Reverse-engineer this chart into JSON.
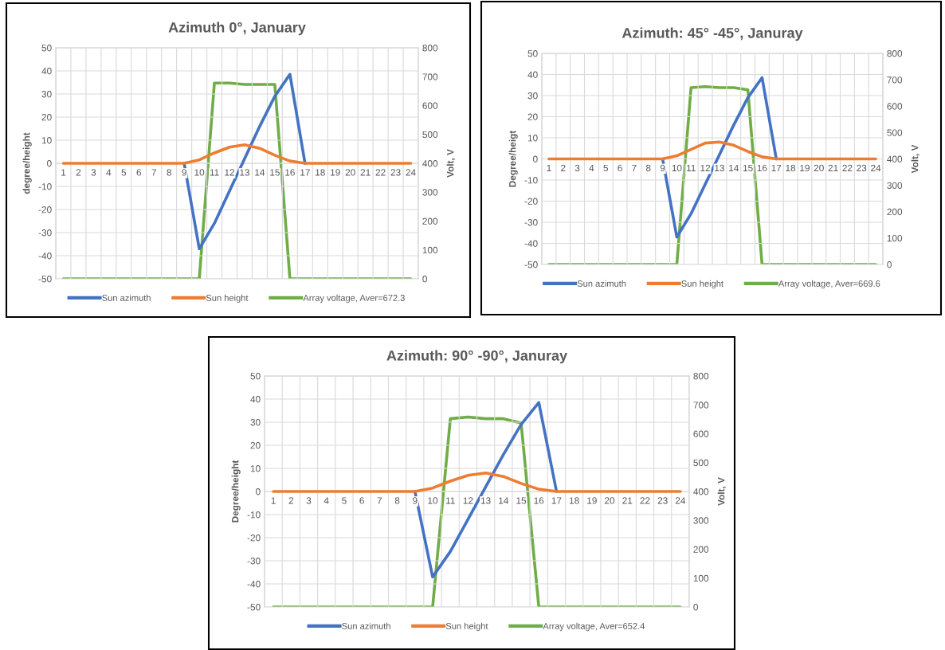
{
  "chart_data": [
    {
      "type": "line",
      "title": "Azimuth 0°, January",
      "ylabel": "degree/height",
      "y2label": "Volt, V",
      "categories": [
        "1",
        "2",
        "3",
        "4",
        "5",
        "6",
        "7",
        "8",
        "9",
        "10",
        "11",
        "12",
        "13",
        "14",
        "15",
        "16",
        "17",
        "18",
        "19",
        "20",
        "21",
        "22",
        "23",
        "24"
      ],
      "series": [
        {
          "name": "Sun azimuth",
          "color": "#4472c4",
          "values": [
            null,
            null,
            null,
            null,
            null,
            null,
            null,
            null,
            0,
            -37,
            -26,
            -12,
            2,
            16,
            29,
            38.5,
            0,
            null,
            null,
            null,
            null,
            null,
            null,
            null
          ]
        },
        {
          "name": "Sun height",
          "color": "#ed7d31",
          "values": [
            0,
            0,
            0,
            0,
            0,
            0,
            0,
            0,
            0,
            1.5,
            4.5,
            7,
            8,
            6.5,
            3.5,
            1,
            0,
            0,
            0,
            0,
            0,
            0,
            0,
            0
          ]
        },
        {
          "name": "Array voltage, Aver=672.3",
          "color": "#70ad47",
          "axis": "y2",
          "values": [
            0,
            0,
            0,
            0,
            0,
            0,
            0,
            0,
            0,
            0,
            678,
            678,
            673,
            673,
            673,
            0,
            0,
            0,
            0,
            0,
            0,
            0,
            0,
            0
          ]
        }
      ],
      "ylim": [
        -50,
        50
      ],
      "yticks": [
        -50,
        -40,
        -30,
        -20,
        -10,
        0,
        10,
        20,
        30,
        40,
        50
      ],
      "y2lim": [
        0,
        800
      ],
      "y2ticks": [
        0,
        100,
        200,
        300,
        400,
        500,
        600,
        700,
        800
      ],
      "grid": true,
      "legend": "bottom",
      "marker": "none",
      "line_style": "solid"
    },
    {
      "type": "line",
      "title": "Azimuth: 45° -45°, Januray",
      "ylabel": "Degree/heigt",
      "y2label": "Volt, V",
      "categories": [
        "1",
        "2",
        "3",
        "4",
        "5",
        "6",
        "7",
        "8",
        "9",
        "10",
        "11",
        "12",
        "13",
        "14",
        "15",
        "16",
        "17",
        "18",
        "19",
        "20",
        "21",
        "22",
        "23",
        "24"
      ],
      "series": [
        {
          "name": "Sun azimuth",
          "color": "#4472c4",
          "values": [
            null,
            null,
            null,
            null,
            null,
            null,
            null,
            null,
            0,
            -37,
            -26,
            -12,
            2,
            16,
            29,
            38.5,
            0,
            null,
            null,
            null,
            null,
            null,
            null,
            null
          ]
        },
        {
          "name": "Sun height",
          "color": "#ed7d31",
          "values": [
            0,
            0,
            0,
            0,
            0,
            0,
            0,
            0,
            0,
            1.5,
            4.5,
            7.5,
            8,
            6.5,
            3.5,
            1,
            0,
            0,
            0,
            0,
            0,
            0,
            0,
            0
          ]
        },
        {
          "name": "Array voltage, Aver=669.6",
          "color": "#70ad47",
          "axis": "y2",
          "values": [
            0,
            0,
            0,
            0,
            0,
            0,
            0,
            0,
            0,
            0,
            670,
            674,
            670,
            670,
            662,
            0,
            0,
            0,
            0,
            0,
            0,
            0,
            0,
            0
          ]
        }
      ],
      "ylim": [
        -50,
        50
      ],
      "yticks": [
        -50,
        -40,
        -30,
        -20,
        -10,
        0,
        10,
        20,
        30,
        40,
        50
      ],
      "y2lim": [
        0,
        800
      ],
      "y2ticks": [
        0,
        100,
        200,
        300,
        400,
        500,
        600,
        700,
        800
      ],
      "grid": true,
      "legend": "bottom",
      "marker": "none",
      "line_style": "solid"
    },
    {
      "type": "line",
      "title": "Azimuth: 90° -90°, Januray",
      "ylabel": "Degree/height",
      "y2label": "Volt, V",
      "categories": [
        "1",
        "2",
        "3",
        "4",
        "5",
        "6",
        "7",
        "8",
        "9",
        "10",
        "11",
        "12",
        "13",
        "14",
        "15",
        "16",
        "17",
        "18",
        "19",
        "20",
        "21",
        "22",
        "23",
        "24"
      ],
      "series": [
        {
          "name": "Sun azimuth",
          "color": "#4472c4",
          "values": [
            null,
            null,
            null,
            null,
            null,
            null,
            null,
            null,
            0,
            -37,
            -26,
            -12,
            2,
            16,
            29,
            38.5,
            0,
            null,
            null,
            null,
            null,
            null,
            null,
            null
          ]
        },
        {
          "name": "Sun height",
          "color": "#ed7d31",
          "values": [
            0,
            0,
            0,
            0,
            0,
            0,
            0,
            0,
            0,
            1.5,
            4.5,
            7,
            8,
            6.5,
            3.5,
            1,
            0,
            0,
            0,
            0,
            0,
            0,
            0,
            0
          ]
        },
        {
          "name": "Array voltage, Aver=652.4",
          "color": "#70ad47",
          "axis": "y2",
          "values": [
            0,
            0,
            0,
            0,
            0,
            0,
            0,
            0,
            0,
            0,
            652,
            658,
            652,
            652,
            637,
            0,
            0,
            0,
            0,
            0,
            0,
            0,
            0,
            0
          ]
        }
      ],
      "ylim": [
        -50,
        50
      ],
      "yticks": [
        -50,
        -40,
        -30,
        -20,
        -10,
        0,
        10,
        20,
        30,
        40,
        50
      ],
      "y2lim": [
        0,
        800
      ],
      "y2ticks": [
        0,
        100,
        200,
        300,
        400,
        500,
        600,
        700,
        800
      ],
      "grid": true,
      "legend": "bottom",
      "marker": "none",
      "line_style": "solid"
    }
  ]
}
